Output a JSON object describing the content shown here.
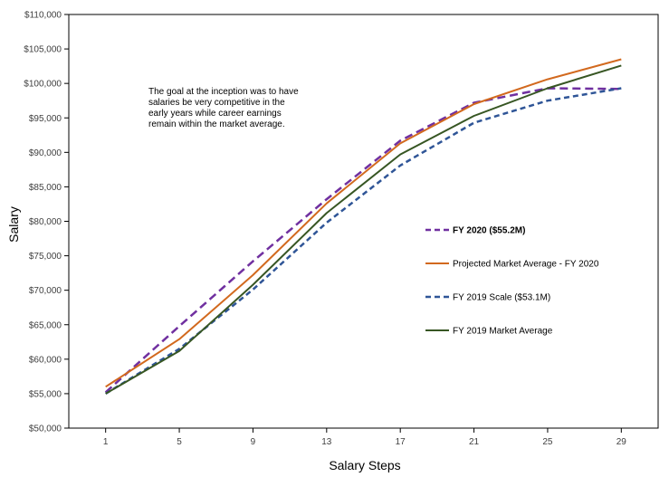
{
  "chart_data": {
    "type": "line",
    "xlabel": "Salary Steps",
    "ylabel": "Salary",
    "x": [
      1,
      5,
      9,
      13,
      17,
      21,
      25,
      29
    ],
    "x_range": [
      -1,
      31
    ],
    "xticks": [
      "1",
      "5",
      "9",
      "13",
      "17",
      "21",
      "25",
      "29"
    ],
    "ylim": [
      50000,
      110000
    ],
    "yticks": [
      "$50,000",
      "$55,000",
      "$60,000",
      "$65,000",
      "$70,000",
      "$75,000",
      "$80,000",
      "$85,000",
      "$90,000",
      "$95,000",
      "$100,000",
      "$105,000",
      "$110,000"
    ],
    "grid": false,
    "legend_placement": "right",
    "annotation": [
      "The goal at the inception was to have",
      "salaries be very competitive in the",
      "early years while career earnings",
      "remain within the market average."
    ],
    "series": [
      {
        "name": "FY 2020 ($55.2M)",
        "color": "#7030A0",
        "style": "dashed",
        "bold_label": true,
        "values": [
          55200,
          64800,
          74200,
          83200,
          91700,
          97200,
          99300,
          99200
        ]
      },
      {
        "name": "Projected Market Average - FY 2020",
        "color": "#D2691E",
        "style": "solid",
        "bold_label": false,
        "values": [
          56000,
          62900,
          72200,
          82600,
          91300,
          97000,
          100600,
          103500
        ]
      },
      {
        "name": "FY 2019 Scale ($53.1M)",
        "color": "#2F5597",
        "style": "dashed",
        "bold_label": false,
        "values": [
          55000,
          61500,
          70100,
          79800,
          88100,
          94300,
          97500,
          99300
        ]
      },
      {
        "name": "FY 2019 Market Average",
        "color": "#375623",
        "style": "solid",
        "bold_label": false,
        "values": [
          55000,
          61200,
          70800,
          81200,
          89700,
          95300,
          99300,
          102600
        ]
      }
    ]
  }
}
